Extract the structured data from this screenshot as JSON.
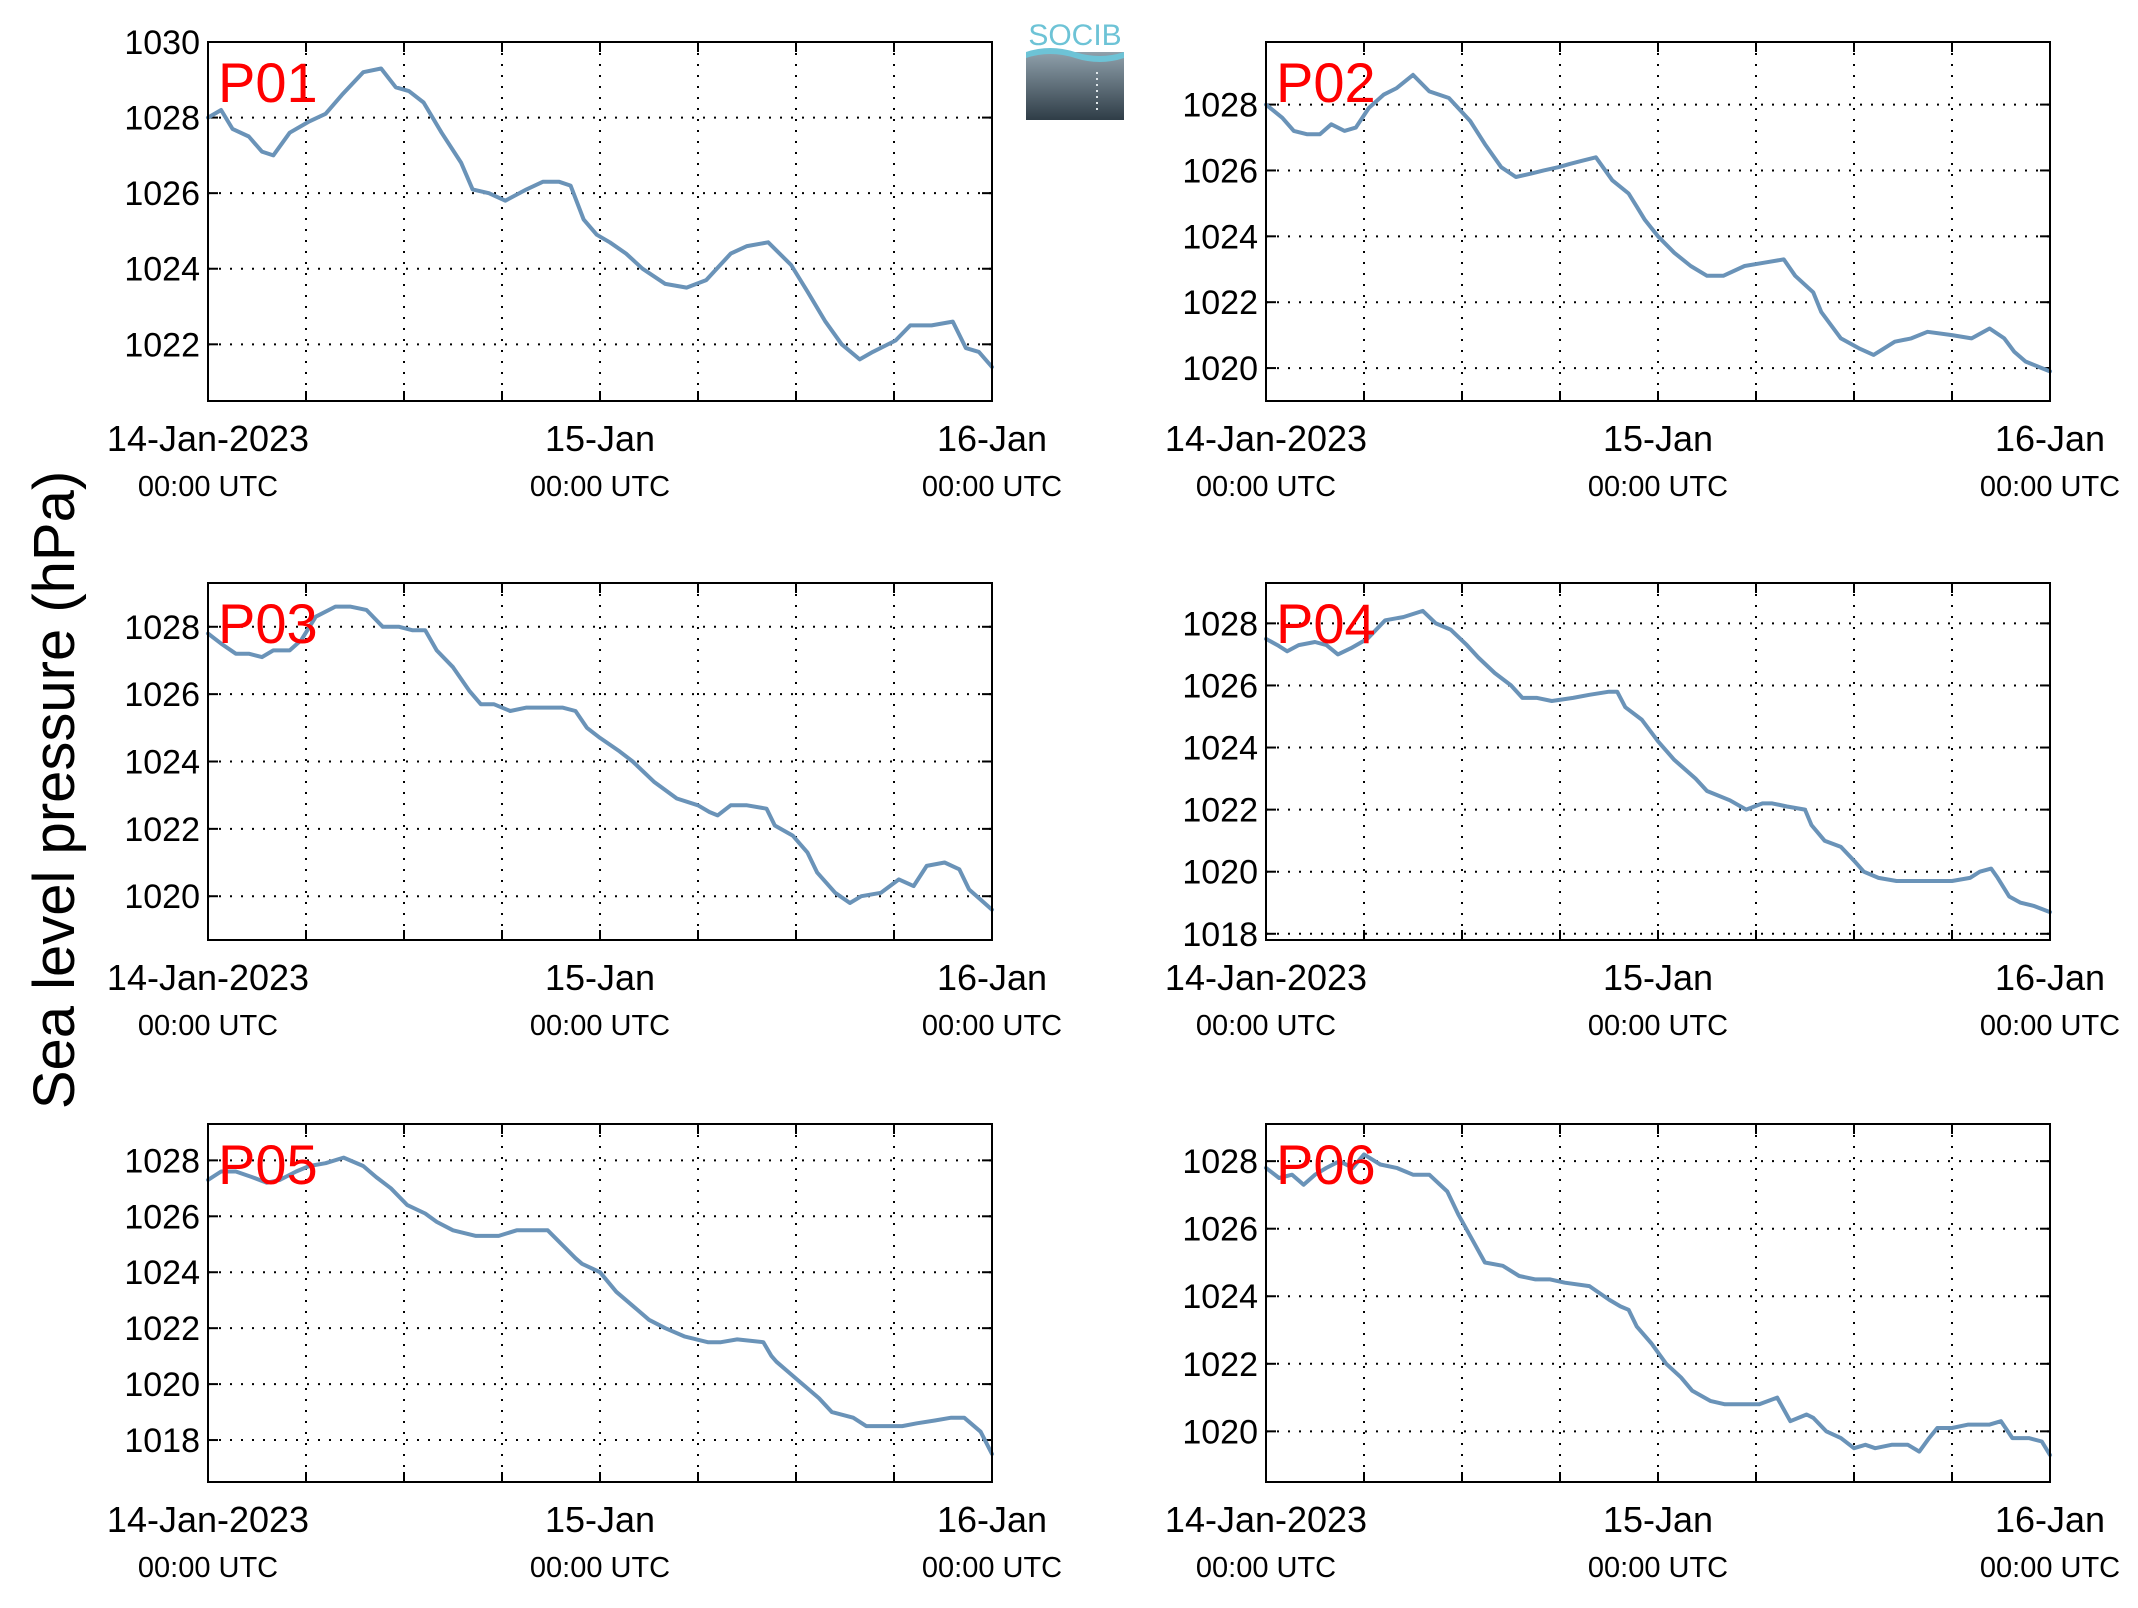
{
  "figure": {
    "ylabel": "Sea level pressure (hPa)",
    "logo_text": "SOCIB",
    "line_color": "#6a93b8",
    "label_color": "#ff0000"
  },
  "chart_data": [
    {
      "type": "line",
      "label": "P01",
      "xlim": [
        0,
        48
      ],
      "ylim": [
        1020.5,
        1030
      ],
      "yticks": [
        1022,
        1024,
        1026,
        1028,
        1030
      ],
      "xtick_labels": [
        {
          "x": 0,
          "line1": "14-Jan-2023",
          "line2": "00:00 UTC"
        },
        {
          "x": 24,
          "line1": "15-Jan",
          "line2": "00:00 UTC"
        },
        {
          "x": 48,
          "line1": "16-Jan",
          "line2": "00:00 UTC"
        }
      ],
      "x": [
        0,
        0.8,
        1.5,
        2.5,
        3.3,
        4,
        5,
        6.2,
        7.2,
        8.2,
        9.5,
        10.6,
        11.5,
        12.3,
        13.2,
        14.3,
        15.5,
        16.2,
        17.2,
        18.2,
        19.5,
        20.5,
        21.5,
        22.2,
        23,
        23.8,
        24.6,
        25.6,
        26.6,
        28,
        29.3,
        30.5,
        32,
        33,
        34.3,
        35.7,
        36.7,
        37.8,
        38.8,
        39.9,
        40.7,
        42.1,
        43,
        44.3,
        45.6,
        46.4,
        47.2,
        48
      ],
      "y": [
        1028.0,
        1028.2,
        1027.7,
        1027.5,
        1027.1,
        1027.0,
        1027.6,
        1027.9,
        1028.1,
        1028.6,
        1029.2,
        1029.3,
        1028.8,
        1028.7,
        1028.4,
        1027.6,
        1026.8,
        1026.1,
        1026.0,
        1025.8,
        1026.1,
        1026.3,
        1026.3,
        1026.2,
        1025.3,
        1024.9,
        1024.7,
        1024.4,
        1024.0,
        1023.6,
        1023.5,
        1023.7,
        1024.4,
        1024.6,
        1024.7,
        1024.1,
        1023.4,
        1022.6,
        1022.0,
        1021.6,
        1021.8,
        1022.1,
        1022.5,
        1022.5,
        1022.6,
        1021.9,
        1021.8,
        1021.4
      ]
    },
    {
      "type": "line",
      "label": "P02",
      "xlim": [
        0,
        48
      ],
      "ylim": [
        1019,
        1029.9
      ],
      "yticks": [
        1020,
        1022,
        1024,
        1026,
        1028
      ],
      "xtick_labels": [
        {
          "x": 0,
          "line1": "14-Jan-2023",
          "line2": "00:00 UTC"
        },
        {
          "x": 24,
          "line1": "15-Jan",
          "line2": "00:00 UTC"
        },
        {
          "x": 48,
          "line1": "16-Jan",
          "line2": "00:00 UTC"
        }
      ],
      "x": [
        0,
        1,
        1.7,
        2.5,
        3.3,
        4,
        4.8,
        5.5,
        6.3,
        7.2,
        8,
        9,
        10,
        11.2,
        12.5,
        13.4,
        14.4,
        15.3,
        16.2,
        17,
        17.9,
        18.6,
        19.4,
        20.2,
        21.2,
        22.2,
        22.7,
        23.2,
        24,
        25,
        26,
        27,
        28,
        29.3,
        30.5,
        31.7,
        32.4,
        33.5,
        34,
        35.2,
        36.3,
        37.2,
        38.5,
        39.5,
        40.5,
        42,
        43.2,
        44.3,
        45.2,
        45.8,
        46.5,
        47.5,
        48
      ],
      "y": [
        1028.0,
        1027.6,
        1027.2,
        1027.1,
        1027.1,
        1027.4,
        1027.2,
        1027.3,
        1027.9,
        1028.3,
        1028.5,
        1028.9,
        1028.4,
        1028.2,
        1027.5,
        1026.8,
        1026.1,
        1025.8,
        1025.9,
        1026.0,
        1026.1,
        1026.2,
        1026.3,
        1026.4,
        1025.7,
        1025.3,
        1024.9,
        1024.5,
        1024.0,
        1023.5,
        1023.1,
        1022.8,
        1022.8,
        1023.1,
        1023.2,
        1023.3,
        1022.8,
        1022.3,
        1021.7,
        1020.9,
        1020.6,
        1020.4,
        1020.8,
        1020.9,
        1021.1,
        1021.0,
        1020.9,
        1021.2,
        1020.9,
        1020.5,
        1020.2,
        1020.0,
        1019.9
      ]
    },
    {
      "type": "line",
      "label": "P03",
      "xlim": [
        0,
        48
      ],
      "ylim": [
        1018.7,
        1029.3
      ],
      "yticks": [
        1020,
        1022,
        1024,
        1026,
        1028
      ],
      "xtick_labels": [
        {
          "x": 0,
          "line1": "14-Jan-2023",
          "line2": "00:00 UTC"
        },
        {
          "x": 24,
          "line1": "15-Jan",
          "line2": "00:00 UTC"
        },
        {
          "x": 48,
          "line1": "16-Jan",
          "line2": "00:00 UTC"
        }
      ],
      "x": [
        0,
        0.8,
        1.7,
        2.5,
        3.3,
        4,
        5,
        5.7,
        6.6,
        7.8,
        8.7,
        9.7,
        10.7,
        11.7,
        12.5,
        13.3,
        14,
        15,
        16,
        16.7,
        17.5,
        18.5,
        19.5,
        20.5,
        21.7,
        22.5,
        23.2,
        24,
        25.2,
        26,
        27.3,
        28.7,
        30,
        30.7,
        31.2,
        32,
        33,
        34.2,
        34.7,
        35.8,
        36.7,
        37.3,
        38.4,
        39.3,
        40,
        41.2,
        42.3,
        43.2,
        44,
        45.1,
        46,
        46.6,
        47.3,
        48
      ],
      "y": [
        1027.8,
        1027.5,
        1027.2,
        1027.2,
        1027.1,
        1027.3,
        1027.3,
        1027.6,
        1028.3,
        1028.6,
        1028.6,
        1028.5,
        1028.0,
        1028.0,
        1027.9,
        1027.9,
        1027.3,
        1026.8,
        1026.1,
        1025.7,
        1025.7,
        1025.5,
        1025.6,
        1025.6,
        1025.6,
        1025.5,
        1025.0,
        1024.7,
        1024.3,
        1024.0,
        1023.4,
        1022.9,
        1022.7,
        1022.5,
        1022.4,
        1022.7,
        1022.7,
        1022.6,
        1022.1,
        1021.8,
        1021.3,
        1020.7,
        1020.1,
        1019.8,
        1020.0,
        1020.1,
        1020.5,
        1020.3,
        1020.9,
        1021.0,
        1020.8,
        1020.2,
        1019.9,
        1019.6
      ]
    },
    {
      "type": "line",
      "label": "P04",
      "xlim": [
        0,
        48
      ],
      "ylim": [
        1017.8,
        1029.3
      ],
      "yticks": [
        1018,
        1020,
        1022,
        1024,
        1026,
        1028
      ],
      "xtick_labels": [
        {
          "x": 0,
          "line1": "14-Jan-2023",
          "line2": "00:00 UTC"
        },
        {
          "x": 24,
          "line1": "15-Jan",
          "line2": "00:00 UTC"
        },
        {
          "x": 48,
          "line1": "16-Jan",
          "line2": "00:00 UTC"
        }
      ],
      "x": [
        0,
        0.7,
        1.3,
        2,
        3,
        3.7,
        4.4,
        5.2,
        6.2,
        7.3,
        8.4,
        9.6,
        10.4,
        11.3,
        12.3,
        13,
        14,
        15,
        15.7,
        16.6,
        17.5,
        18.8,
        19.8,
        21,
        21.5,
        22,
        23,
        24,
        25,
        26.3,
        27,
        28.4,
        29.4,
        30.4,
        31,
        31.9,
        33,
        33.4,
        34.2,
        35.2,
        36.1,
        36.6,
        37.5,
        38.6,
        40,
        41,
        42,
        43.1,
        43.7,
        44.4,
        44.8,
        45.5,
        46.2,
        47,
        48
      ],
      "y": [
        1027.5,
        1027.3,
        1027.1,
        1027.3,
        1027.4,
        1027.3,
        1027.0,
        1027.2,
        1027.5,
        1028.1,
        1028.2,
        1028.4,
        1028.0,
        1027.8,
        1027.3,
        1026.9,
        1026.4,
        1026.0,
        1025.6,
        1025.6,
        1025.5,
        1025.6,
        1025.7,
        1025.8,
        1025.8,
        1025.3,
        1024.9,
        1024.2,
        1023.6,
        1023.0,
        1022.6,
        1022.3,
        1022.0,
        1022.2,
        1022.2,
        1022.1,
        1022.0,
        1021.5,
        1021.0,
        1020.8,
        1020.3,
        1020.0,
        1019.8,
        1019.7,
        1019.7,
        1019.7,
        1019.7,
        1019.8,
        1020.0,
        1020.1,
        1019.8,
        1019.2,
        1019.0,
        1018.9,
        1018.7
      ]
    },
    {
      "type": "line",
      "label": "P05",
      "xlim": [
        0,
        48
      ],
      "ylim": [
        1016.5,
        1029.3
      ],
      "yticks": [
        1018,
        1020,
        1022,
        1024,
        1026,
        1028
      ],
      "xtick_labels": [
        {
          "x": 0,
          "line1": "14-Jan-2023",
          "line2": "00:00 UTC"
        },
        {
          "x": 24,
          "line1": "15-Jan",
          "line2": "00:00 UTC"
        },
        {
          "x": 48,
          "line1": "16-Jan",
          "line2": "00:00 UTC"
        }
      ],
      "x": [
        0,
        0.8,
        1.7,
        2.7,
        3.6,
        4.4,
        5.4,
        6.2,
        7.2,
        8.3,
        9.5,
        10.3,
        11.2,
        12.2,
        13.3,
        14,
        15,
        16.4,
        17,
        17.8,
        18.9,
        20.1,
        20.8,
        22,
        22.5,
        22.9,
        24,
        25,
        26,
        27,
        28,
        29.2,
        30.6,
        31.4,
        32.4,
        34,
        34.5,
        34.8,
        35.4,
        36.4,
        37.4,
        38.2,
        39.5,
        40.3,
        42.5,
        43.4,
        44.5,
        45.5,
        46.3,
        47.3,
        48
      ],
      "y": [
        1027.3,
        1027.6,
        1027.6,
        1027.4,
        1027.2,
        1027.3,
        1027.6,
        1027.8,
        1027.9,
        1028.1,
        1027.8,
        1027.4,
        1027.0,
        1026.4,
        1026.1,
        1025.8,
        1025.5,
        1025.3,
        1025.3,
        1025.3,
        1025.5,
        1025.5,
        1025.5,
        1024.8,
        1024.5,
        1024.3,
        1024.0,
        1023.3,
        1022.8,
        1022.3,
        1022.0,
        1021.7,
        1021.5,
        1021.5,
        1021.6,
        1021.5,
        1021.0,
        1020.8,
        1020.5,
        1020.0,
        1019.5,
        1019.0,
        1018.8,
        1018.5,
        1018.5,
        1018.6,
        1018.7,
        1018.8,
        1018.8,
        1018.3,
        1017.5
      ]
    },
    {
      "type": "line",
      "label": "P06",
      "xlim": [
        0,
        48
      ],
      "ylim": [
        1018.5,
        1029.1
      ],
      "yticks": [
        1020,
        1022,
        1024,
        1026,
        1028
      ],
      "xtick_labels": [
        {
          "x": 0,
          "line1": "14-Jan-2023",
          "line2": "00:00 UTC"
        },
        {
          "x": 24,
          "line1": "15-Jan",
          "line2": "00:00 UTC"
        },
        {
          "x": 48,
          "line1": "16-Jan",
          "line2": "00:00 UTC"
        }
      ],
      "x": [
        0,
        0.8,
        1.6,
        2.3,
        3,
        3.7,
        4.5,
        5.3,
        6,
        7,
        8,
        9,
        10,
        11.1,
        11.8,
        12.6,
        13.4,
        14.5,
        15.5,
        16.5,
        17.4,
        18.3,
        19.8,
        21,
        21.7,
        22.2,
        22.7,
        23.6,
        24.5,
        25.4,
        26.1,
        27.2,
        28.1,
        29,
        30.2,
        31.3,
        32.1,
        33.1,
        33.5,
        34.3,
        35.2,
        36,
        36.7,
        37.3,
        38.3,
        39.3,
        40,
        40.6,
        41.1,
        42,
        43,
        44.3,
        45,
        45.7,
        46.7,
        47.5,
        48
      ],
      "y": [
        1027.8,
        1027.5,
        1027.6,
        1027.3,
        1027.6,
        1027.8,
        1028.0,
        1027.8,
        1028.2,
        1027.9,
        1027.8,
        1027.6,
        1027.6,
        1027.1,
        1026.4,
        1025.7,
        1025.0,
        1024.9,
        1024.6,
        1024.5,
        1024.5,
        1024.4,
        1024.3,
        1023.9,
        1023.7,
        1023.6,
        1023.1,
        1022.6,
        1022.0,
        1021.6,
        1021.2,
        1020.9,
        1020.8,
        1020.8,
        1020.8,
        1021.0,
        1020.3,
        1020.5,
        1020.4,
        1020.0,
        1019.8,
        1019.5,
        1019.6,
        1019.5,
        1019.6,
        1019.6,
        1019.4,
        1019.8,
        1020.1,
        1020.1,
        1020.2,
        1020.2,
        1020.3,
        1019.8,
        1019.8,
        1019.7,
        1019.3
      ]
    }
  ]
}
